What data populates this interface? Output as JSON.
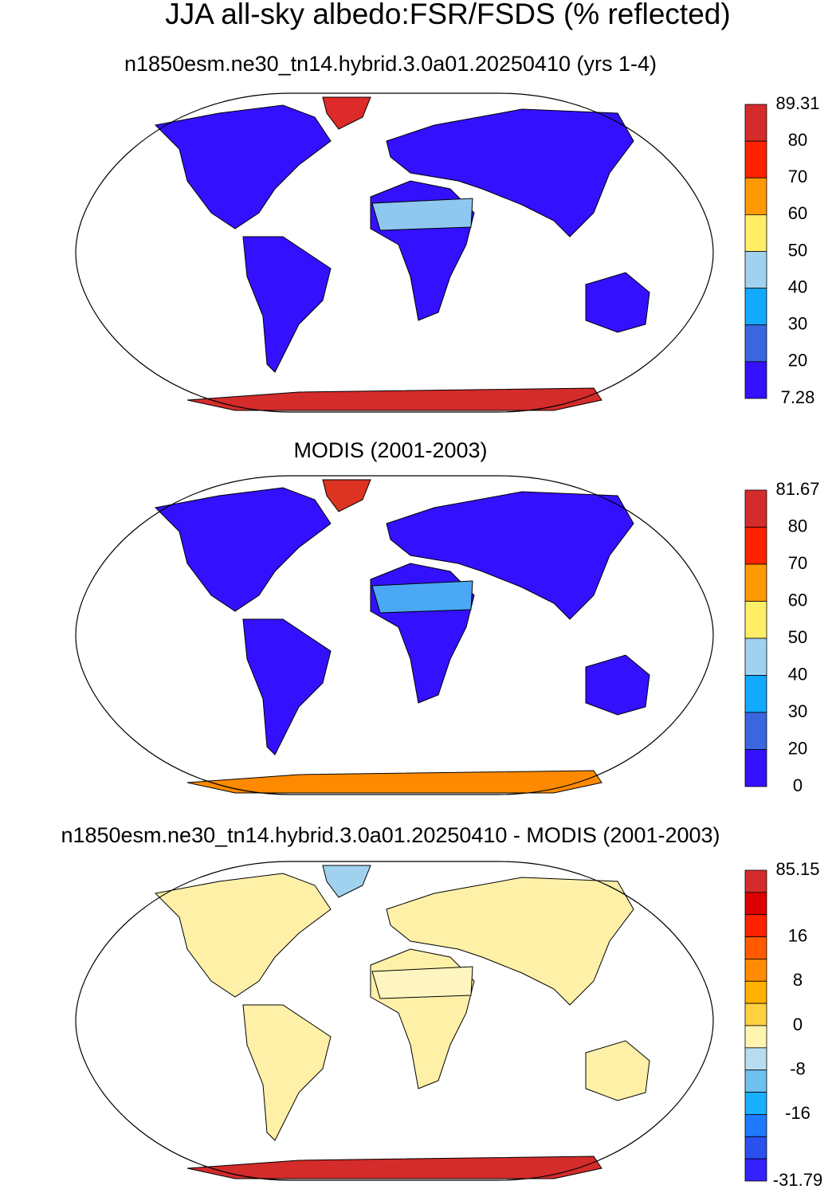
{
  "title": "JJA all-sky albedo:FSR/FSDS (% reflected)",
  "panels": [
    {
      "subtitle": "n1850esm.ne30_tn14.hybrid.3.0a01.20250410 (yrs 1-4)",
      "colorbar": {
        "labels": [
          89.31,
          80,
          70,
          60,
          50,
          40,
          30,
          20,
          7.28
        ],
        "colors": [
          "#d42b2b",
          "#ff2200",
          "#ff9900",
          "#ffee66",
          "#a0d2f0",
          "#11aaff",
          "#3a66e0",
          "#3311ff"
        ]
      }
    },
    {
      "subtitle": "MODIS (2001-2003)",
      "colorbar": {
        "labels": [
          81.67,
          80,
          70,
          60,
          50,
          40,
          30,
          20,
          0
        ],
        "colors": [
          "#d42b2b",
          "#ff2200",
          "#ff9900",
          "#ffee66",
          "#a0d2f0",
          "#11aaff",
          "#3a66e0",
          "#3311ff"
        ]
      }
    },
    {
      "subtitle": "n1850esm.ne30_tn14.hybrid.3.0a01.20250410 - MODIS (2001-2003)",
      "colorbar": {
        "labels": [
          85.15,
          null,
          null,
          16,
          null,
          8,
          null,
          0,
          null,
          -8,
          null,
          -16,
          null,
          null,
          -31.79
        ],
        "colors": [
          "#d42b2b",
          "#dd0000",
          "#ff2200",
          "#ff5a00",
          "#ff8c00",
          "#ffb000",
          "#ffd040",
          "#fff5b0",
          "#b8ddf0",
          "#6ec0ee",
          "#1ab0ff",
          "#1e7aff",
          "#2a50ee",
          "#3322ff"
        ]
      }
    }
  ]
}
